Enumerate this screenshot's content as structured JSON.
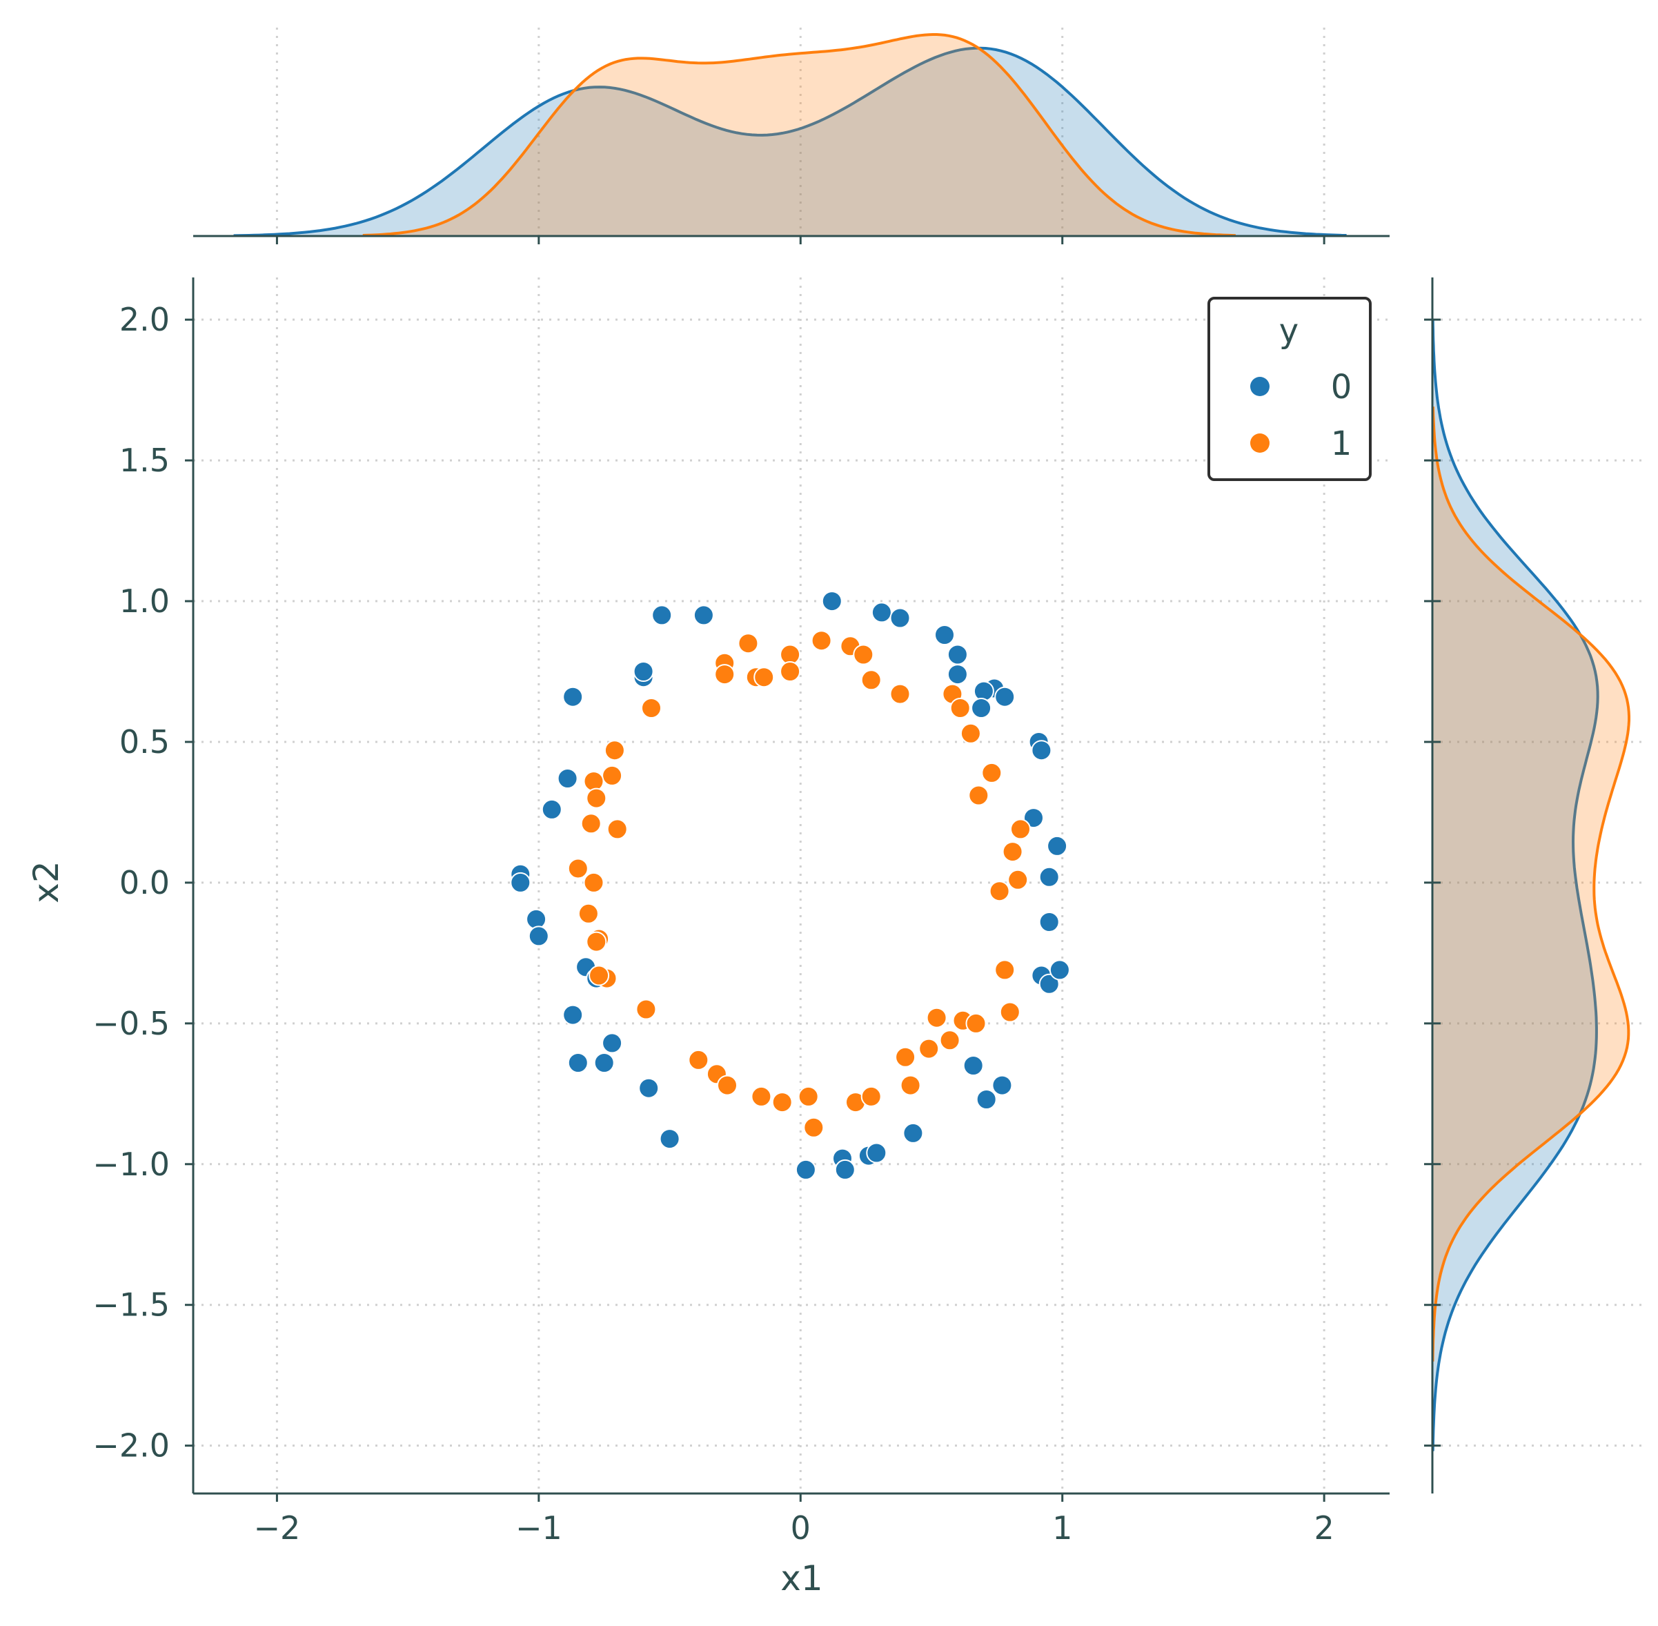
{
  "chart_data": {
    "type": "scatter",
    "xlabel": "x1",
    "ylabel": "x2",
    "xlim": [
      -2.32,
      2.25
    ],
    "ylim": [
      -2.17,
      2.15
    ],
    "xticks": [
      -2,
      -1,
      0,
      1,
      2
    ],
    "xtick_labels": [
      "−2",
      "−1",
      "0",
      "1",
      "2"
    ],
    "yticks": [
      2.0,
      1.5,
      1.0,
      0.5,
      0.0,
      -0.5,
      -1.0,
      -1.5,
      -2.0
    ],
    "ytick_labels": [
      "2.0",
      "1.5",
      "1.0",
      "0.5",
      "0.0",
      "−0.5",
      "−1.0",
      "−1.5",
      "−2.0"
    ],
    "grid": true,
    "legend": {
      "title": "y",
      "placement": "top-right",
      "entries": [
        "0",
        "1"
      ]
    },
    "marginals": {
      "top": "kde of x1 by y",
      "right": "kde of x2 by y"
    },
    "colors": {
      "0": "#1f77b4",
      "1": "#ff7f0e",
      "axes": "#2f4f4f"
    },
    "series": [
      {
        "name": "0",
        "points": [
          [
            0.12,
            1.0
          ],
          [
            -0.53,
            0.95
          ],
          [
            -0.37,
            0.95
          ],
          [
            0.31,
            0.96
          ],
          [
            0.38,
            0.94
          ],
          [
            0.55,
            0.88
          ],
          [
            0.6,
            0.81
          ],
          [
            0.6,
            0.74
          ],
          [
            -0.6,
            0.73
          ],
          [
            -0.6,
            0.75
          ],
          [
            0.74,
            0.69
          ],
          [
            0.7,
            0.68
          ],
          [
            0.78,
            0.66
          ],
          [
            0.69,
            0.62
          ],
          [
            -0.87,
            0.66
          ],
          [
            0.91,
            0.5
          ],
          [
            0.92,
            0.47
          ],
          [
            -0.89,
            0.37
          ],
          [
            -0.95,
            0.26
          ],
          [
            0.89,
            0.23
          ],
          [
            0.98,
            0.13
          ],
          [
            0.95,
            0.02
          ],
          [
            -1.07,
            0.03
          ],
          [
            -1.07,
            0.0
          ],
          [
            -1.01,
            -0.13
          ],
          [
            -1.0,
            -0.19
          ],
          [
            0.95,
            -0.14
          ],
          [
            -0.82,
            -0.3
          ],
          [
            -0.78,
            -0.34
          ],
          [
            0.92,
            -0.33
          ],
          [
            0.95,
            -0.36
          ],
          [
            0.99,
            -0.31
          ],
          [
            -0.87,
            -0.47
          ],
          [
            -0.72,
            -0.57
          ],
          [
            -0.85,
            -0.64
          ],
          [
            -0.75,
            -0.64
          ],
          [
            0.66,
            -0.65
          ],
          [
            0.77,
            -0.72
          ],
          [
            0.71,
            -0.77
          ],
          [
            -0.58,
            -0.73
          ],
          [
            -0.5,
            -0.91
          ],
          [
            0.43,
            -0.89
          ],
          [
            0.16,
            -0.98
          ],
          [
            0.26,
            -0.97
          ],
          [
            0.29,
            -0.96
          ],
          [
            0.02,
            -1.02
          ],
          [
            0.17,
            -1.02
          ]
        ]
      },
      {
        "name": "1",
        "points": [
          [
            -0.2,
            0.85
          ],
          [
            0.08,
            0.86
          ],
          [
            0.19,
            0.84
          ],
          [
            0.24,
            0.81
          ],
          [
            -0.04,
            0.81
          ],
          [
            -0.29,
            0.78
          ],
          [
            -0.29,
            0.74
          ],
          [
            -0.04,
            0.75
          ],
          [
            -0.17,
            0.73
          ],
          [
            -0.14,
            0.73
          ],
          [
            0.27,
            0.72
          ],
          [
            0.38,
            0.67
          ],
          [
            0.58,
            0.67
          ],
          [
            0.61,
            0.62
          ],
          [
            -0.57,
            0.62
          ],
          [
            0.65,
            0.53
          ],
          [
            -0.71,
            0.47
          ],
          [
            0.73,
            0.39
          ],
          [
            -0.72,
            0.38
          ],
          [
            -0.79,
            0.36
          ],
          [
            0.68,
            0.31
          ],
          [
            -0.78,
            0.3
          ],
          [
            -0.8,
            0.21
          ],
          [
            -0.7,
            0.19
          ],
          [
            0.84,
            0.19
          ],
          [
            0.81,
            0.11
          ],
          [
            -0.85,
            0.05
          ],
          [
            0.83,
            0.01
          ],
          [
            -0.79,
            0.0
          ],
          [
            0.76,
            -0.03
          ],
          [
            -0.81,
            -0.11
          ],
          [
            -0.77,
            -0.2
          ],
          [
            -0.78,
            -0.21
          ],
          [
            0.78,
            -0.31
          ],
          [
            -0.74,
            -0.34
          ],
          [
            -0.77,
            -0.33
          ],
          [
            -0.59,
            -0.45
          ],
          [
            0.8,
            -0.46
          ],
          [
            0.52,
            -0.48
          ],
          [
            0.62,
            -0.49
          ],
          [
            0.67,
            -0.5
          ],
          [
            0.57,
            -0.56
          ],
          [
            0.49,
            -0.59
          ],
          [
            0.4,
            -0.62
          ],
          [
            -0.39,
            -0.63
          ],
          [
            -0.32,
            -0.68
          ],
          [
            -0.28,
            -0.72
          ],
          [
            0.42,
            -0.72
          ],
          [
            -0.15,
            -0.76
          ],
          [
            0.03,
            -0.76
          ],
          [
            -0.07,
            -0.78
          ],
          [
            0.21,
            -0.78
          ],
          [
            0.27,
            -0.76
          ],
          [
            0.05,
            -0.87
          ]
        ]
      }
    ]
  }
}
